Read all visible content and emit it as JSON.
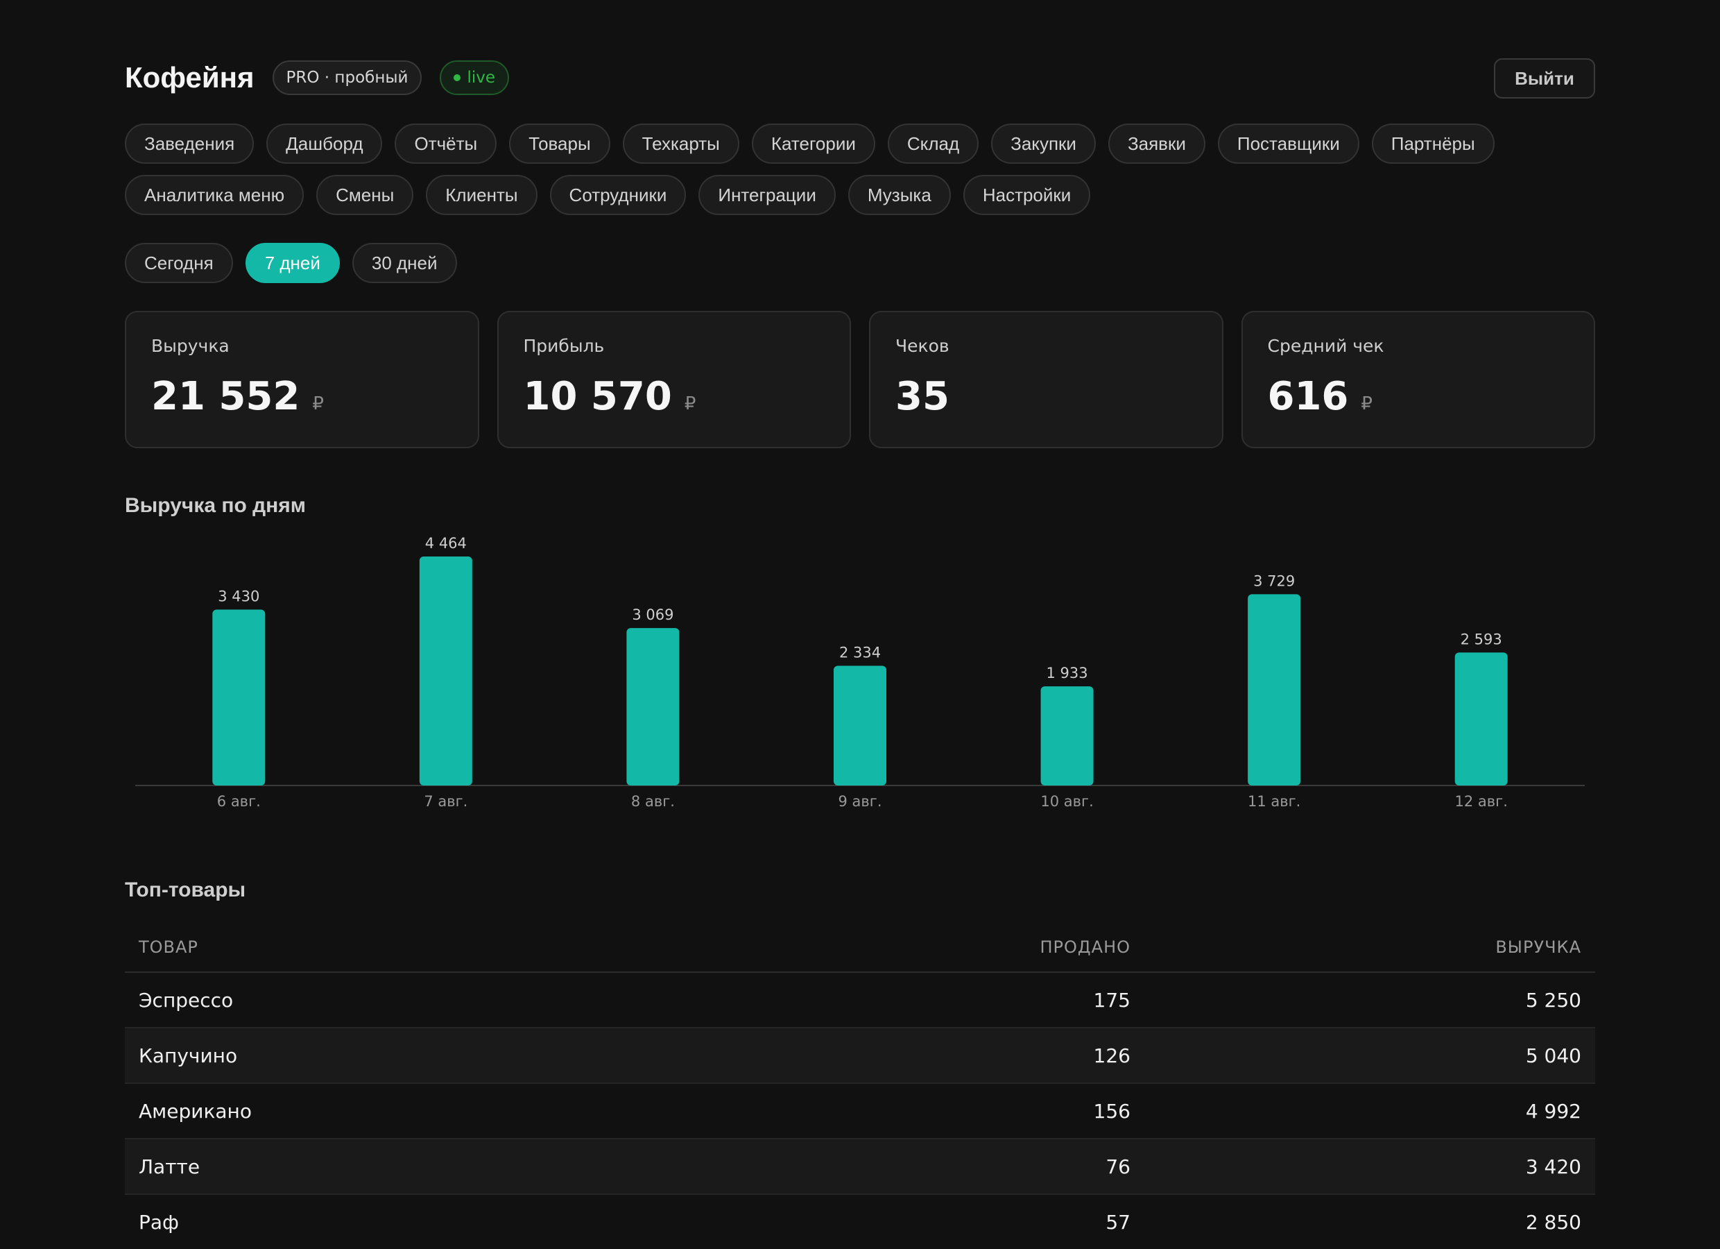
{
  "header": {
    "title": "Кофейня",
    "plan_badge": "PRO · пробный",
    "live_badge": "live",
    "logout_label": "Выйти"
  },
  "nav": {
    "items": [
      "Заведения",
      "Дашборд",
      "Отчёты",
      "Товары",
      "Техкарты",
      "Категории",
      "Склад",
      "Закупки",
      "Заявки",
      "Поставщики",
      "Партнёры",
      "Аналитика меню",
      "Смены",
      "Клиенты",
      "Сотрудники",
      "Интеграции",
      "Музыка",
      "Настройки"
    ]
  },
  "periods": {
    "items": [
      "Сегодня",
      "7 дней",
      "30 дней"
    ],
    "active": "7 дней"
  },
  "stats": [
    {
      "label": "Выручка",
      "value": "21 552",
      "unit": "₽"
    },
    {
      "label": "Прибыль",
      "value": "10 570",
      "unit": "₽"
    },
    {
      "label": "Чеков",
      "value": "35",
      "unit": ""
    },
    {
      "label": "Средний чек",
      "value": "616",
      "unit": "₽"
    }
  ],
  "chart_section_title": "Выручка по дням",
  "chart_data": {
    "type": "bar",
    "title": "Выручка по дням",
    "categories": [
      "6 авг.",
      "7 авг.",
      "8 авг.",
      "9 авг.",
      "10 авг.",
      "11 авг.",
      "12 авг."
    ],
    "values": [
      3430,
      4464,
      3069,
      2334,
      1933,
      3729,
      2593
    ],
    "value_labels": [
      "3 430",
      "4 464",
      "3 069",
      "2 334",
      "1 933",
      "3 729",
      "2 593"
    ],
    "bar_color": "#14b8a6",
    "grid": false,
    "legend": "none"
  },
  "top_products": {
    "title": "Топ-товары",
    "columns": [
      "ТОВАР",
      "ПРОДАНО",
      "ВЫРУЧКА"
    ],
    "rows": [
      {
        "name": "Эспрессо",
        "sold": "175",
        "revenue": "5 250"
      },
      {
        "name": "Капучино",
        "sold": "126",
        "revenue": "5 040"
      },
      {
        "name": "Американо",
        "sold": "156",
        "revenue": "4 992"
      },
      {
        "name": "Латте",
        "sold": "76",
        "revenue": "3 420"
      },
      {
        "name": "Раф",
        "sold": "57",
        "revenue": "2 850"
      }
    ]
  },
  "colors": {
    "accent": "#14b8a6",
    "live": "#2fb845",
    "background": "#111111"
  }
}
